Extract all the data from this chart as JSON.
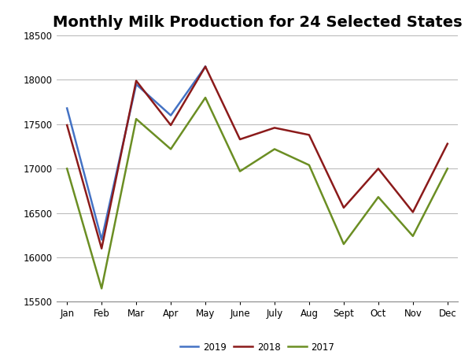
{
  "title": "Monthly Milk Production for 24 Selected States",
  "months": [
    "Jan",
    "Feb",
    "Mar",
    "Apr",
    "May",
    "June",
    "July",
    "Aug",
    "Sept",
    "Oct",
    "Nov",
    "Dec"
  ],
  "series_2019": [
    17680,
    16200,
    17950,
    17600,
    18150,
    null,
    null,
    null,
    null,
    null,
    null,
    null
  ],
  "series_2018": [
    17490,
    16100,
    17990,
    17490,
    18150,
    17330,
    17460,
    17380,
    16560,
    17000,
    16510,
    17280
  ],
  "series_2017": [
    17000,
    15650,
    17560,
    17220,
    17800,
    16970,
    17220,
    17040,
    16150,
    16680,
    16240,
    17000
  ],
  "color_2019": "#4472C4",
  "color_2018": "#8B1A1A",
  "color_2017": "#6B8E23",
  "ylim": [
    15500,
    18500
  ],
  "yticks": [
    15500,
    16000,
    16500,
    17000,
    17500,
    18000,
    18500
  ],
  "background_color": "#FFFFFF",
  "grid_color": "#AAAAAA",
  "title_fontsize": 14,
  "legend_labels": [
    "2019",
    "2018",
    "2017"
  ]
}
